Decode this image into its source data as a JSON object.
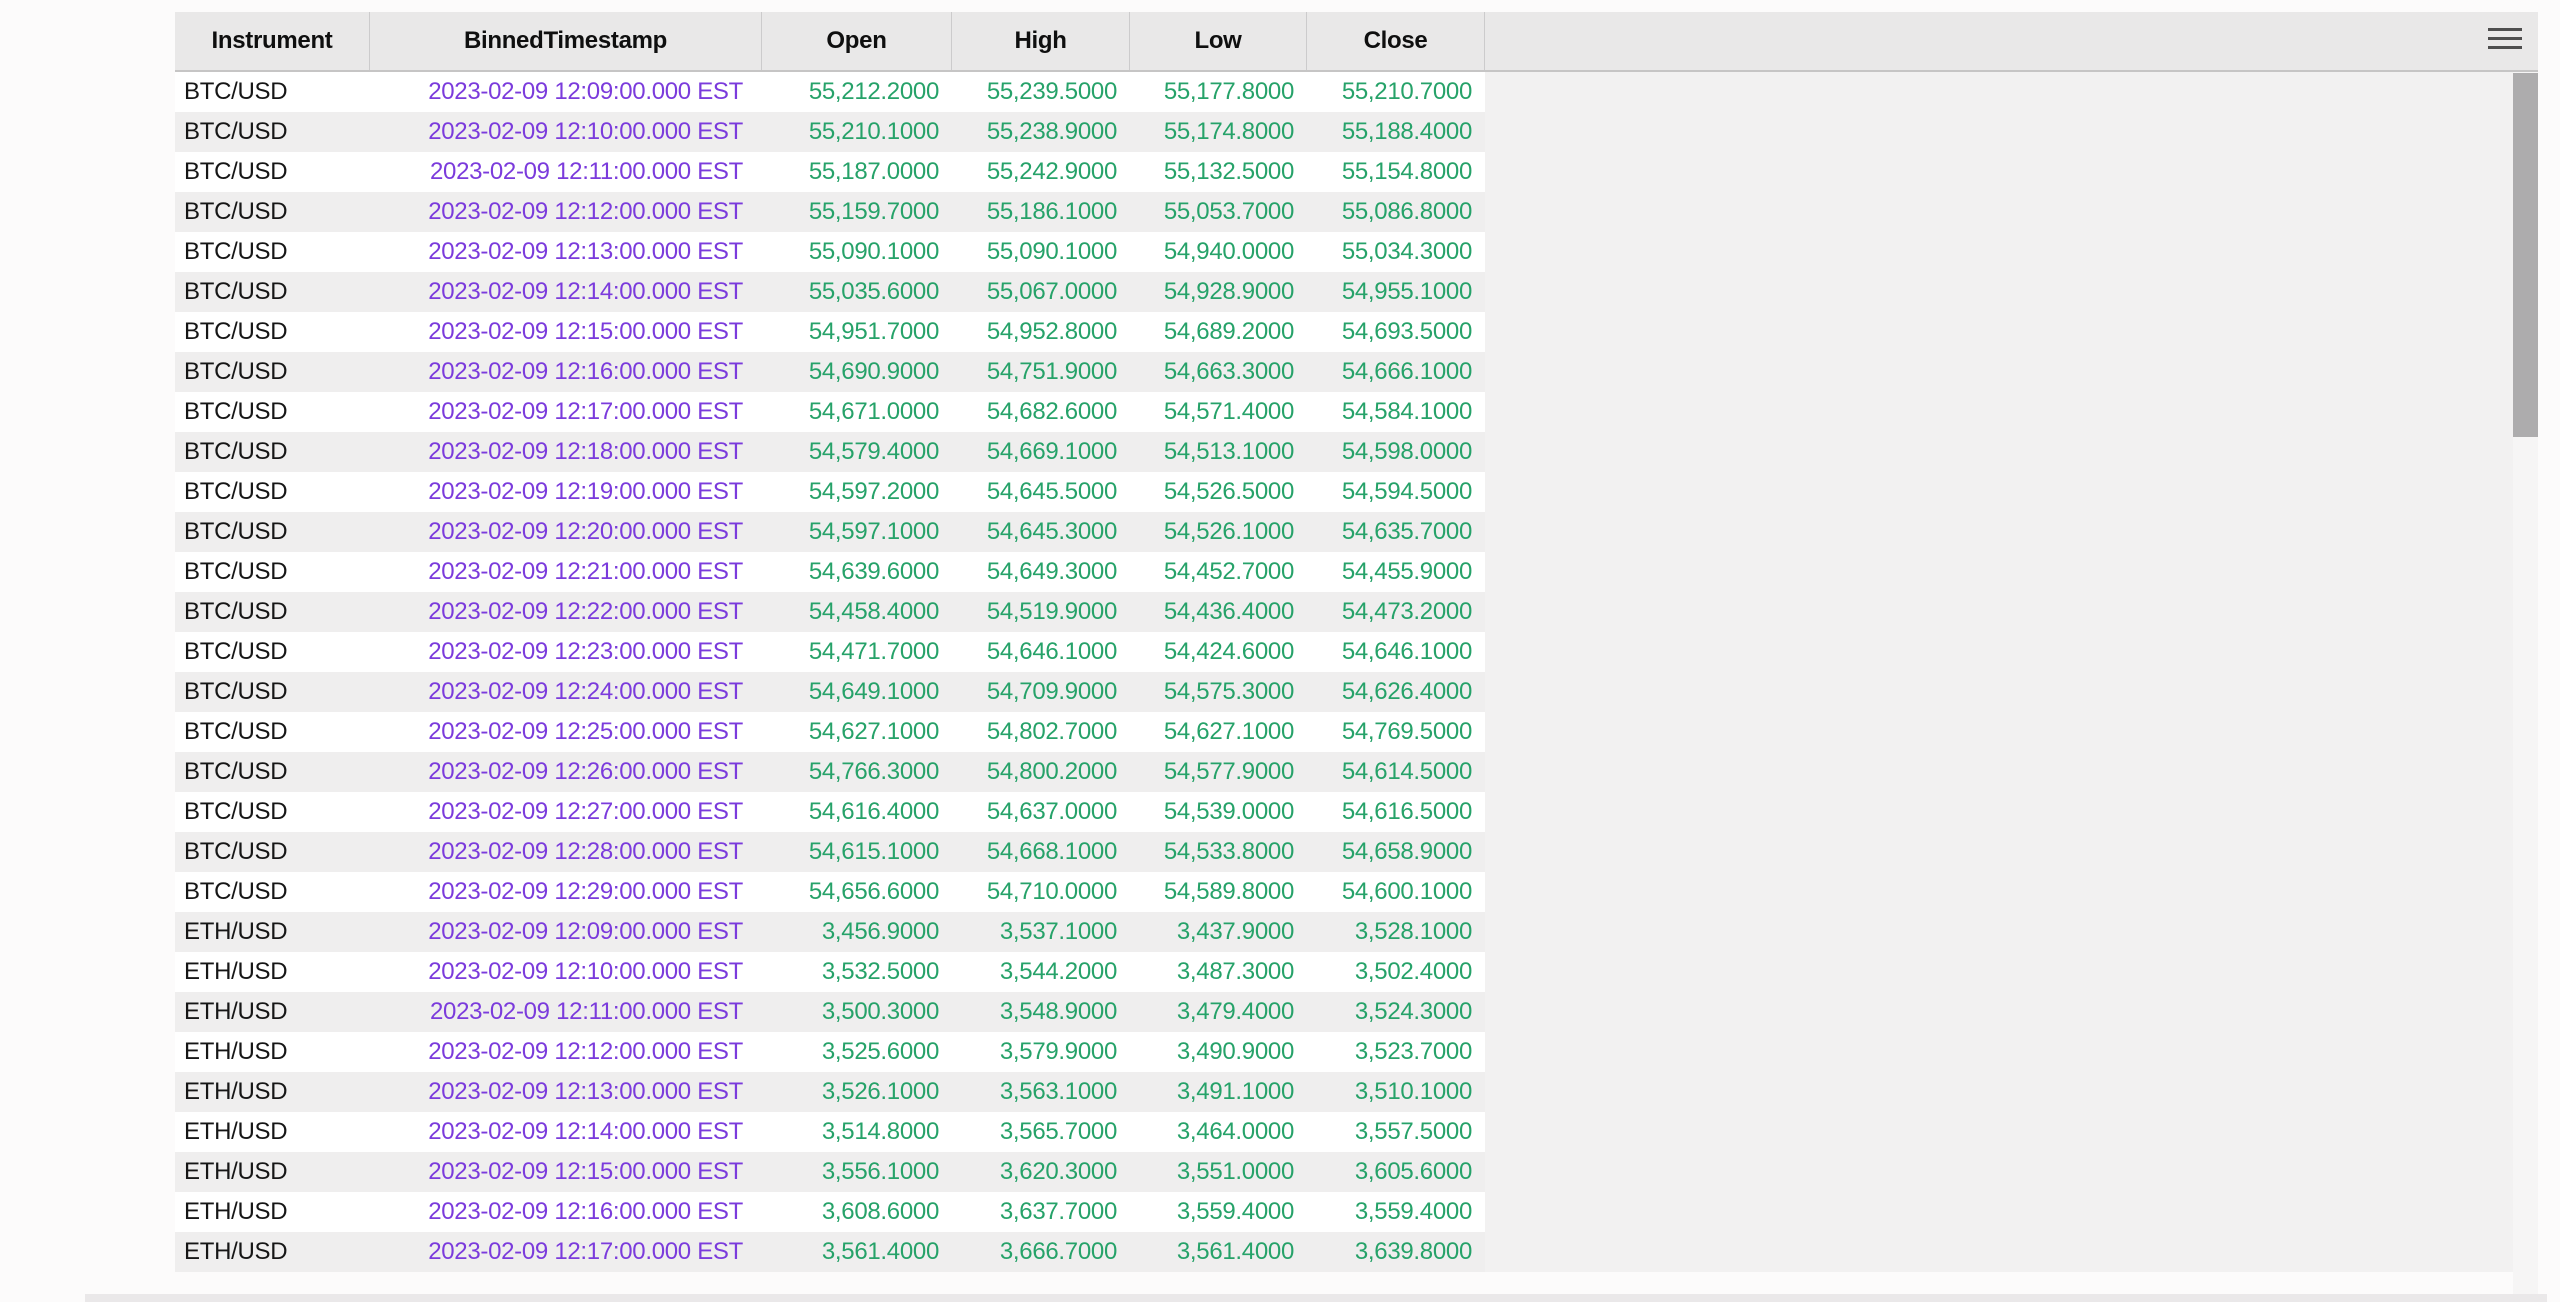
{
  "columns": [
    "Instrument",
    "BinnedTimestamp",
    "Open",
    "High",
    "Low",
    "Close"
  ],
  "rows": [
    {
      "instrument": "BTC/USD",
      "timestamp": "2023-02-09 12:09:00.000 EST",
      "open": "55,212.2000",
      "high": "55,239.5000",
      "low": "55,177.8000",
      "close": "55,210.7000"
    },
    {
      "instrument": "BTC/USD",
      "timestamp": "2023-02-09 12:10:00.000 EST",
      "open": "55,210.1000",
      "high": "55,238.9000",
      "low": "55,174.8000",
      "close": "55,188.4000"
    },
    {
      "instrument": "BTC/USD",
      "timestamp": "2023-02-09 12:11:00.000 EST",
      "open": "55,187.0000",
      "high": "55,242.9000",
      "low": "55,132.5000",
      "close": "55,154.8000"
    },
    {
      "instrument": "BTC/USD",
      "timestamp": "2023-02-09 12:12:00.000 EST",
      "open": "55,159.7000",
      "high": "55,186.1000",
      "low": "55,053.7000",
      "close": "55,086.8000"
    },
    {
      "instrument": "BTC/USD",
      "timestamp": "2023-02-09 12:13:00.000 EST",
      "open": "55,090.1000",
      "high": "55,090.1000",
      "low": "54,940.0000",
      "close": "55,034.3000"
    },
    {
      "instrument": "BTC/USD",
      "timestamp": "2023-02-09 12:14:00.000 EST",
      "open": "55,035.6000",
      "high": "55,067.0000",
      "low": "54,928.9000",
      "close": "54,955.1000"
    },
    {
      "instrument": "BTC/USD",
      "timestamp": "2023-02-09 12:15:00.000 EST",
      "open": "54,951.7000",
      "high": "54,952.8000",
      "low": "54,689.2000",
      "close": "54,693.5000"
    },
    {
      "instrument": "BTC/USD",
      "timestamp": "2023-02-09 12:16:00.000 EST",
      "open": "54,690.9000",
      "high": "54,751.9000",
      "low": "54,663.3000",
      "close": "54,666.1000"
    },
    {
      "instrument": "BTC/USD",
      "timestamp": "2023-02-09 12:17:00.000 EST",
      "open": "54,671.0000",
      "high": "54,682.6000",
      "low": "54,571.4000",
      "close": "54,584.1000"
    },
    {
      "instrument": "BTC/USD",
      "timestamp": "2023-02-09 12:18:00.000 EST",
      "open": "54,579.4000",
      "high": "54,669.1000",
      "low": "54,513.1000",
      "close": "54,598.0000"
    },
    {
      "instrument": "BTC/USD",
      "timestamp": "2023-02-09 12:19:00.000 EST",
      "open": "54,597.2000",
      "high": "54,645.5000",
      "low": "54,526.5000",
      "close": "54,594.5000"
    },
    {
      "instrument": "BTC/USD",
      "timestamp": "2023-02-09 12:20:00.000 EST",
      "open": "54,597.1000",
      "high": "54,645.3000",
      "low": "54,526.1000",
      "close": "54,635.7000"
    },
    {
      "instrument": "BTC/USD",
      "timestamp": "2023-02-09 12:21:00.000 EST",
      "open": "54,639.6000",
      "high": "54,649.3000",
      "low": "54,452.7000",
      "close": "54,455.9000"
    },
    {
      "instrument": "BTC/USD",
      "timestamp": "2023-02-09 12:22:00.000 EST",
      "open": "54,458.4000",
      "high": "54,519.9000",
      "low": "54,436.4000",
      "close": "54,473.2000"
    },
    {
      "instrument": "BTC/USD",
      "timestamp": "2023-02-09 12:23:00.000 EST",
      "open": "54,471.7000",
      "high": "54,646.1000",
      "low": "54,424.6000",
      "close": "54,646.1000"
    },
    {
      "instrument": "BTC/USD",
      "timestamp": "2023-02-09 12:24:00.000 EST",
      "open": "54,649.1000",
      "high": "54,709.9000",
      "low": "54,575.3000",
      "close": "54,626.4000"
    },
    {
      "instrument": "BTC/USD",
      "timestamp": "2023-02-09 12:25:00.000 EST",
      "open": "54,627.1000",
      "high": "54,802.7000",
      "low": "54,627.1000",
      "close": "54,769.5000"
    },
    {
      "instrument": "BTC/USD",
      "timestamp": "2023-02-09 12:26:00.000 EST",
      "open": "54,766.3000",
      "high": "54,800.2000",
      "low": "54,577.9000",
      "close": "54,614.5000"
    },
    {
      "instrument": "BTC/USD",
      "timestamp": "2023-02-09 12:27:00.000 EST",
      "open": "54,616.4000",
      "high": "54,637.0000",
      "low": "54,539.0000",
      "close": "54,616.5000"
    },
    {
      "instrument": "BTC/USD",
      "timestamp": "2023-02-09 12:28:00.000 EST",
      "open": "54,615.1000",
      "high": "54,668.1000",
      "low": "54,533.8000",
      "close": "54,658.9000"
    },
    {
      "instrument": "BTC/USD",
      "timestamp": "2023-02-09 12:29:00.000 EST",
      "open": "54,656.6000",
      "high": "54,710.0000",
      "low": "54,589.8000",
      "close": "54,600.1000"
    },
    {
      "instrument": "ETH/USD",
      "timestamp": "2023-02-09 12:09:00.000 EST",
      "open": "3,456.9000",
      "high": "3,537.1000",
      "low": "3,437.9000",
      "close": "3,528.1000"
    },
    {
      "instrument": "ETH/USD",
      "timestamp": "2023-02-09 12:10:00.000 EST",
      "open": "3,532.5000",
      "high": "3,544.2000",
      "low": "3,487.3000",
      "close": "3,502.4000"
    },
    {
      "instrument": "ETH/USD",
      "timestamp": "2023-02-09 12:11:00.000 EST",
      "open": "3,500.3000",
      "high": "3,548.9000",
      "low": "3,479.4000",
      "close": "3,524.3000"
    },
    {
      "instrument": "ETH/USD",
      "timestamp": "2023-02-09 12:12:00.000 EST",
      "open": "3,525.6000",
      "high": "3,579.9000",
      "low": "3,490.9000",
      "close": "3,523.7000"
    },
    {
      "instrument": "ETH/USD",
      "timestamp": "2023-02-09 12:13:00.000 EST",
      "open": "3,526.1000",
      "high": "3,563.1000",
      "low": "3,491.1000",
      "close": "3,510.1000"
    },
    {
      "instrument": "ETH/USD",
      "timestamp": "2023-02-09 12:14:00.000 EST",
      "open": "3,514.8000",
      "high": "3,565.7000",
      "low": "3,464.0000",
      "close": "3,557.5000"
    },
    {
      "instrument": "ETH/USD",
      "timestamp": "2023-02-09 12:15:00.000 EST",
      "open": "3,556.1000",
      "high": "3,620.3000",
      "low": "3,551.0000",
      "close": "3,605.6000"
    },
    {
      "instrument": "ETH/USD",
      "timestamp": "2023-02-09 12:16:00.000 EST",
      "open": "3,608.6000",
      "high": "3,637.7000",
      "low": "3,559.4000",
      "close": "3,559.4000"
    },
    {
      "instrument": "ETH/USD",
      "timestamp": "2023-02-09 12:17:00.000 EST",
      "open": "3,561.4000",
      "high": "3,666.7000",
      "low": "3,561.4000",
      "close": "3,639.8000"
    }
  ],
  "icons": {
    "menu": "hamburger-menu-icon"
  },
  "colors": {
    "timestamp_text": "#7b3bdc",
    "number_text": "#26a269",
    "header_bg": "#e9e8e8",
    "row_alt_bg": "#efeeee"
  }
}
